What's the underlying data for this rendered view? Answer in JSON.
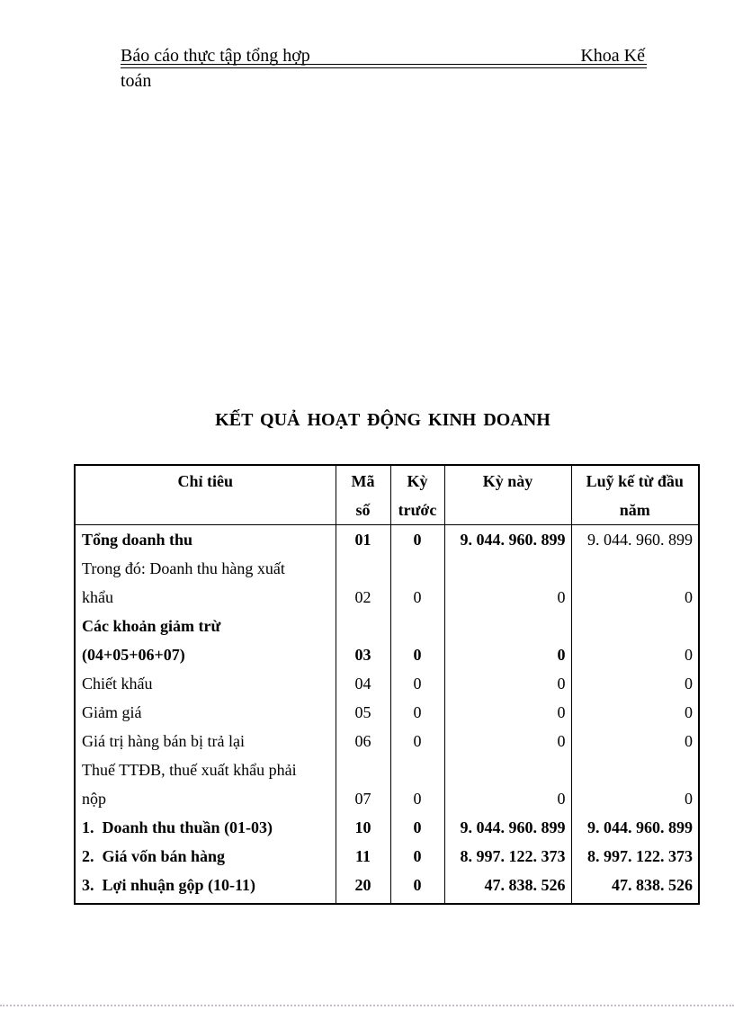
{
  "header": {
    "left_text": "Báo cáo thực tập tổng hợp",
    "right_text": "Khoa Kế",
    "overflow_text": "toán"
  },
  "title": "KẾT QUẢ HOẠT ĐỘNG KINH DOANH",
  "table": {
    "headers": [
      "Chỉ tiêu",
      "Mã\nsố",
      "Kỳ\ntrước",
      "Kỳ này",
      "Luỹ kế từ đầu\nnăm"
    ],
    "rows": [
      {
        "label": "Tổng doanh thu",
        "code": "01",
        "prev_period": "0",
        "this_period": "9. 044. 960. 899",
        "cumulative": "9. 044. 960. 899"
      },
      {
        "label": "Trong đó: Doanh thu hàng xuất\nkhẩu",
        "code": "02",
        "prev_period": "0",
        "this_period": "0",
        "cumulative": "0"
      },
      {
        "label": "Các khoản giảm trừ\n(04+05+06+07)",
        "code": "03",
        "prev_period": "0",
        "this_period": "0",
        "cumulative": "0"
      },
      {
        "label": "Chiết khấu",
        "code": "04",
        "prev_period": "0",
        "this_period": "0",
        "cumulative": "0"
      },
      {
        "label": "Giảm giá",
        "code": "05",
        "prev_period": "0",
        "this_period": "0",
        "cumulative": "0"
      },
      {
        "label": "Giá trị hàng bán bị trả lại",
        "code": "06",
        "prev_period": "0",
        "this_period": "0",
        "cumulative": "0"
      },
      {
        "label": "Thuế TTĐB, thuế xuất khẩu phải\nnộp",
        "code": "07",
        "prev_period": "0",
        "this_period": "0",
        "cumulative": "0"
      },
      {
        "label": "1.  Doanh thu thuần (01-03)",
        "code": "10",
        "prev_period": "0",
        "this_period": "9. 044. 960. 899",
        "cumulative": "9. 044. 960. 899"
      },
      {
        "label": "2.  Giá vốn bán hàng",
        "code": "11",
        "prev_period": "0",
        "this_period": "8. 997. 122. 373",
        "cumulative": "8. 997. 122. 373"
      },
      {
        "label": "3.  Lợi nhuận gộp (10-11)",
        "code": "20",
        "prev_period": "0",
        "this_period": "47. 838. 526",
        "cumulative": "47. 838. 526"
      }
    ]
  }
}
